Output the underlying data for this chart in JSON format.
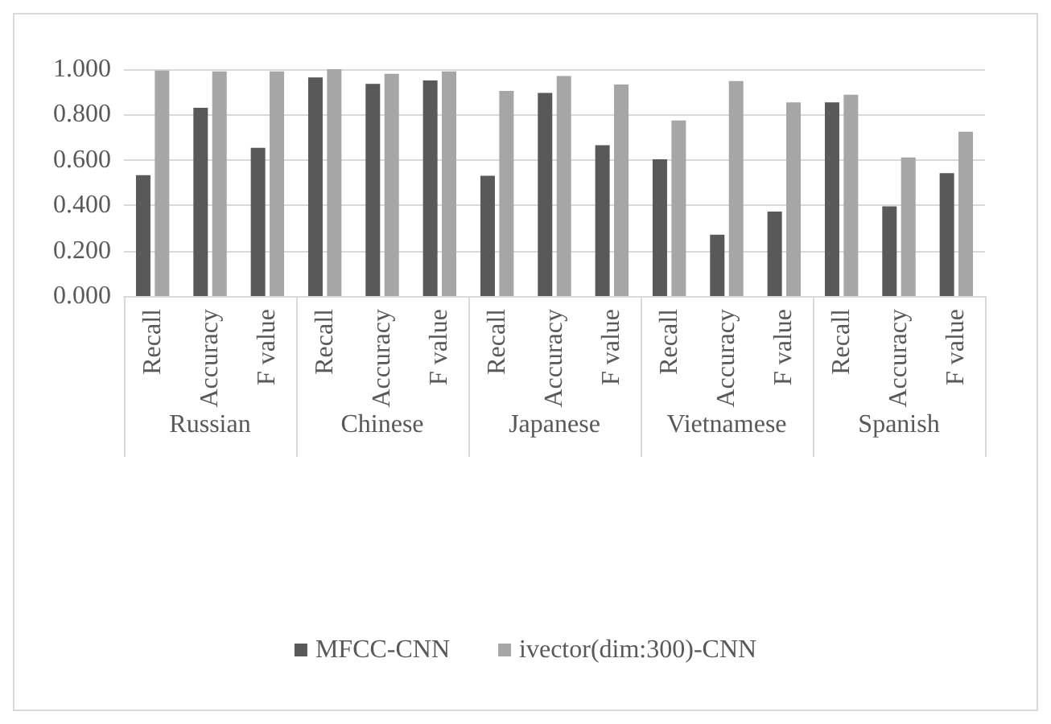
{
  "chart_data": {
    "type": "bar",
    "categories": [
      "Recall",
      "Accuracy",
      "F value",
      "Recall",
      "Accuracy",
      "F value",
      "Recall",
      "Accuracy",
      "F value",
      "Recall",
      "Accuracy",
      "F value",
      "Recall",
      "Accuracy",
      "F value"
    ],
    "annotations": [
      "Russian",
      "Chinese",
      "Japanese",
      "Vietnamese",
      "Spanish"
    ],
    "series": [
      {
        "name": "MFCC-CNN",
        "color": "#595959",
        "values": [
          0.533,
          0.83,
          0.653,
          0.964,
          0.935,
          0.95,
          0.53,
          0.895,
          0.665,
          0.603,
          0.27,
          0.372,
          0.854,
          0.395,
          0.542
        ]
      },
      {
        "name": "ivector(dim:300)-CNN",
        "color": "#a6a6a6",
        "values": [
          0.994,
          0.99,
          0.99,
          1.0,
          0.98,
          0.99,
          0.904,
          0.97,
          0.933,
          0.774,
          0.948,
          0.854,
          0.887,
          0.611,
          0.724
        ]
      }
    ],
    "ylim": [
      0,
      1
    ],
    "yticks": [
      {
        "value": 0,
        "label": "0.000"
      },
      {
        "value": 0.2,
        "label": "0.200"
      },
      {
        "value": 0.4,
        "label": "0.400"
      },
      {
        "value": 0.6,
        "label": "0.600"
      },
      {
        "value": 0.8,
        "label": "0.800"
      },
      {
        "value": 1,
        "label": "1.000"
      }
    ],
    "grid": "y",
    "legend": "bottom"
  }
}
